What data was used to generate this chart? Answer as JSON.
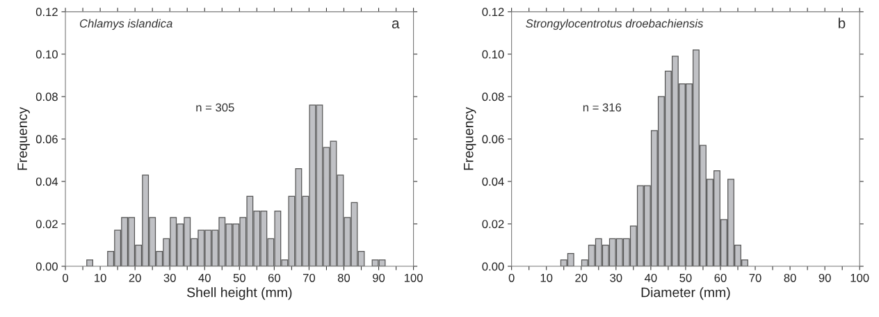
{
  "chart_data": [
    {
      "type": "histogram",
      "xlabel": "Shell height (mm)",
      "ylabel": "Frequency",
      "annotations": [
        "Chlamys islandica",
        "a",
        "n = 305"
      ],
      "bins": [
        6,
        8,
        10,
        12,
        14,
        16,
        18,
        20,
        22,
        24,
        26,
        28,
        30,
        32,
        34,
        36,
        38,
        40,
        42,
        44,
        46,
        48,
        50,
        52,
        54,
        56,
        58,
        60,
        62,
        64,
        66,
        68,
        70,
        72,
        74,
        76,
        78,
        80,
        82,
        84,
        86,
        88,
        90,
        92
      ],
      "values": [
        0.003,
        0,
        0,
        0.007,
        0.017,
        0.023,
        0.023,
        0.01,
        0.043,
        0.023,
        0.007,
        0.013,
        0.023,
        0.02,
        0.023,
        0.013,
        0.017,
        0.017,
        0.017,
        0.023,
        0.02,
        0.02,
        0.023,
        0.033,
        0.026,
        0.026,
        0.013,
        0.026,
        0.003,
        0.033,
        0.046,
        0.033,
        0.076,
        0.076,
        0.056,
        0.059,
        0.043,
        0.023,
        0.03,
        0.007,
        0,
        0.003,
        0.003
      ],
      "color": "#c0c1c5",
      "xlim": [
        0,
        100
      ],
      "xticks": [
        0,
        {
          "value": 5,
          "label": null
        },
        10,
        {
          "value": 15,
          "label": null
        },
        20,
        {
          "value": 25,
          "label": null
        },
        30,
        {
          "value": 35,
          "label": null
        },
        40,
        {
          "value": 45,
          "label": null
        },
        50,
        {
          "value": 55,
          "label": null
        },
        60,
        {
          "value": 65,
          "label": null
        },
        70,
        {
          "value": 75,
          "label": null
        },
        80,
        {
          "value": 85,
          "label": null
        },
        90,
        {
          "value": 95,
          "label": null
        },
        100
      ],
      "ylim": [
        0,
        0.12
      ],
      "yticks": [
        {
          "value": 0,
          "label": "0.00"
        },
        {
          "value": 0.02,
          "label": "0.02"
        },
        {
          "value": 0.04,
          "label": "0.04"
        },
        {
          "value": 0.06,
          "label": "0.06"
        },
        {
          "value": 0.08,
          "label": "0.08"
        },
        {
          "value": 0.1,
          "label": "0.10"
        },
        {
          "value": 0.12,
          "label": "0.12"
        }
      ],
      "grid": false
    },
    {
      "type": "histogram",
      "xlabel": "Diameter (mm)",
      "ylabel": "Frequency",
      "annotations": [
        "Strongylocentrotus droebachiensis",
        "b",
        "n = 316"
      ],
      "bins": [
        14,
        16,
        18,
        20,
        22,
        24,
        26,
        28,
        30,
        32,
        34,
        36,
        38,
        40,
        42,
        44,
        46,
        48,
        50,
        52,
        54,
        56,
        58,
        60,
        62,
        64,
        66,
        68
      ],
      "values": [
        0.003,
        0.006,
        0,
        0.003,
        0.01,
        0.013,
        0.01,
        0.013,
        0.013,
        0.013,
        0.019,
        0.038,
        0.038,
        0.064,
        0.08,
        0.092,
        0.099,
        0.086,
        0.086,
        0.102,
        0.057,
        0.041,
        0.045,
        0.022,
        0.041,
        0.01,
        0.003
      ],
      "color": "#c0c1c5",
      "xlim": [
        0,
        100
      ],
      "xticks": [
        0,
        {
          "value": 5,
          "label": null
        },
        10,
        {
          "value": 15,
          "label": null
        },
        20,
        {
          "value": 25,
          "label": null
        },
        30,
        {
          "value": 35,
          "label": null
        },
        40,
        {
          "value": 45,
          "label": null
        },
        50,
        {
          "value": 55,
          "label": null
        },
        60,
        {
          "value": 65,
          "label": null
        },
        70,
        {
          "value": 75,
          "label": null
        },
        80,
        {
          "value": 85,
          "label": null
        },
        90,
        {
          "value": 95,
          "label": null
        },
        100
      ],
      "ylim": [
        0,
        0.12
      ],
      "yticks": [
        {
          "value": 0,
          "label": "0.00"
        },
        {
          "value": 0.02,
          "label": "0.02"
        },
        {
          "value": 0.04,
          "label": "0.04"
        },
        {
          "value": 0.06,
          "label": "0.06"
        },
        {
          "value": 0.08,
          "label": "0.08"
        },
        {
          "value": 0.1,
          "label": "0.10"
        },
        {
          "value": 0.12,
          "label": "0.12"
        }
      ],
      "grid": false
    }
  ]
}
